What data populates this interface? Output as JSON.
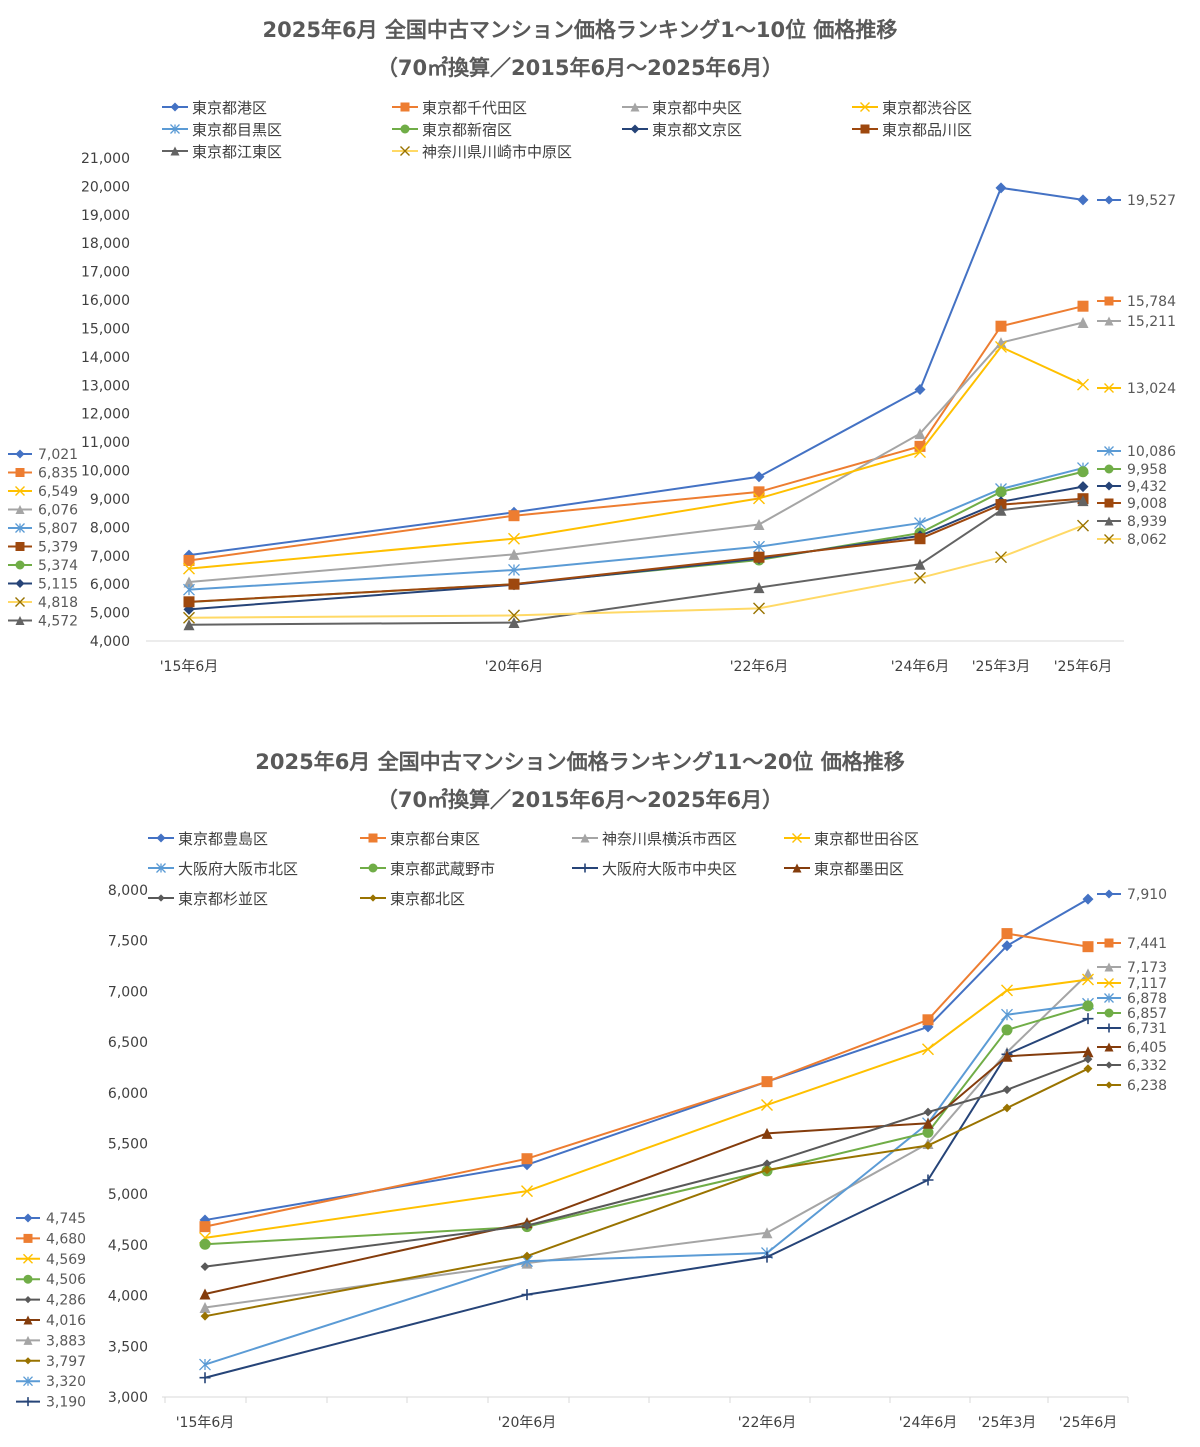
{
  "chart_data": [
    {
      "type": "line",
      "title": "2025年6月 全国中古マンション価格ランキング1～10位 価格推移",
      "subtitle": "（70㎡換算／2015年6月～2025年6月）",
      "categories": [
        "'15年6月",
        "'20年6月",
        "'22年6月",
        "'24年6月",
        "'25年3月",
        "'25年6月"
      ],
      "ylim": [
        4000,
        21000
      ],
      "ystep": 1000,
      "yticks": [
        "4,000",
        "5,000",
        "6,000",
        "7,000",
        "8,000",
        "9,000",
        "10,000",
        "11,000",
        "12,000",
        "13,000",
        "14,000",
        "15,000",
        "16,000",
        "17,000",
        "18,000",
        "19,000",
        "20,000",
        "21,000"
      ],
      "series": [
        {
          "name": "東京都港区",
          "color": "#4472C4",
          "marker": "diamond",
          "values": [
            7021,
            8530,
            9780,
            12850,
            19950,
            19527
          ],
          "start_label": "7,021",
          "end_label": "19,527"
        },
        {
          "name": "東京都千代田区",
          "color": "#ED7D31",
          "marker": "square",
          "values": [
            6835,
            8410,
            9250,
            10850,
            15080,
            15784
          ],
          "start_label": "6,835",
          "end_label": "15,784"
        },
        {
          "name": "東京都中央区",
          "color": "#A5A5A5",
          "marker": "triangle",
          "values": [
            6076,
            7050,
            8100,
            11300,
            14500,
            15211
          ],
          "start_label": "6,076",
          "end_label": "15,211"
        },
        {
          "name": "東京都渋谷区",
          "color": "#FFC000",
          "marker": "x",
          "values": [
            6549,
            7600,
            9020,
            10650,
            14350,
            13024
          ],
          "start_label": "6,549",
          "end_label": "13,024"
        },
        {
          "name": "東京都目黒区",
          "color": "#5B9BD5",
          "marker": "star",
          "values": [
            5807,
            6500,
            7320,
            8150,
            9350,
            10086
          ],
          "start_label": "5,807",
          "end_label": "10,086"
        },
        {
          "name": "東京都新宿区",
          "color": "#70AD47",
          "marker": "circle",
          "values": [
            5374,
            6000,
            6850,
            7800,
            9250,
            9958
          ],
          "start_label": "5,374",
          "end_label": "9,958"
        },
        {
          "name": "東京都文京区",
          "color": "#264478",
          "marker": "diamond",
          "values": [
            5115,
            5980,
            6900,
            7700,
            8900,
            9432
          ],
          "start_label": "5,115",
          "end_label": "9,432"
        },
        {
          "name": "東京都品川区",
          "color": "#9E480E",
          "marker": "square",
          "values": [
            5379,
            6000,
            6950,
            7600,
            8800,
            9008
          ],
          "start_label": "5,379",
          "end_label": "9,008"
        },
        {
          "name": "東京都江東区",
          "color": "#636363",
          "marker": "triangle",
          "values": [
            4572,
            4650,
            5880,
            6700,
            8600,
            8939
          ],
          "start_label": "4,572",
          "end_label": "8,939"
        },
        {
          "name": "神奈川県川崎市中原区",
          "color": "#997300",
          "marker": "x",
          "line_color": "#FFD966",
          "values": [
            4818,
            4900,
            5150,
            6220,
            6950,
            8062
          ],
          "start_label": "4,818",
          "end_label": "8,062"
        }
      ]
    },
    {
      "type": "line",
      "title": "2025年6月 全国中古マンション価格ランキング11～20位 価格推移",
      "subtitle": "（70㎡換算／2015年6月～2025年6月）",
      "categories": [
        "'15年6月",
        "'20年6月",
        "'22年6月",
        "'24年6月",
        "'25年3月",
        "'25年6月"
      ],
      "ylim": [
        3000,
        8000
      ],
      "ystep": 500,
      "yticks": [
        "3,000",
        "3,500",
        "4,000",
        "4,500",
        "5,000",
        "5,500",
        "6,000",
        "6,500",
        "7,000",
        "7,500",
        "8,000"
      ],
      "series": [
        {
          "name": "東京都豊島区",
          "color": "#4472C4",
          "marker": "diamond",
          "values": [
            4745,
            5290,
            6110,
            6650,
            7450,
            7910
          ],
          "start_label": "4,745",
          "end_label": "7,910"
        },
        {
          "name": "東京都台東区",
          "color": "#ED7D31",
          "marker": "square",
          "values": [
            4680,
            5350,
            6110,
            6720,
            7570,
            7441
          ],
          "start_label": "4,680",
          "end_label": "7,441"
        },
        {
          "name": "神奈川県横浜市西区",
          "color": "#A5A5A5",
          "marker": "triangle",
          "values": [
            3883,
            4320,
            4620,
            5500,
            6400,
            7173
          ],
          "start_label": "3,883",
          "end_label": "7,173"
        },
        {
          "name": "東京都世田谷区",
          "color": "#FFC000",
          "marker": "x",
          "values": [
            4569,
            5030,
            5880,
            6430,
            7010,
            7117
          ],
          "start_label": "4,569",
          "end_label": "7,117"
        },
        {
          "name": "大阪府大阪市北区",
          "color": "#5B9BD5",
          "marker": "star",
          "values": [
            3320,
            4340,
            4420,
            5700,
            6770,
            6878
          ],
          "start_label": "3,320",
          "end_label": "6,878"
        },
        {
          "name": "東京都武蔵野市",
          "color": "#70AD47",
          "marker": "circle",
          "values": [
            4506,
            4680,
            5230,
            5610,
            6620,
            6857
          ],
          "start_label": "4,506",
          "end_label": "6,857"
        },
        {
          "name": "大阪府大阪市中央区",
          "color": "#264478",
          "marker": "plus",
          "values": [
            3190,
            4010,
            4380,
            5140,
            6380,
            6731
          ],
          "start_label": "3,190",
          "end_label": "6,731"
        },
        {
          "name": "東京都墨田区",
          "color": "#843C0C",
          "marker": "triangle",
          "values": [
            4016,
            4720,
            5600,
            5700,
            6360,
            6405
          ],
          "start_label": "4,016",
          "end_label": "6,405"
        },
        {
          "name": "東京都杉並区",
          "color": "#595959",
          "marker": "diamond-small",
          "values": [
            4286,
            4690,
            5300,
            5810,
            6030,
            6332
          ],
          "start_label": "4,286",
          "end_label": "6,332"
        },
        {
          "name": "東京都北区",
          "color": "#997300",
          "marker": "diamond-small",
          "values": [
            3797,
            4390,
            5240,
            5480,
            5850,
            6238
          ],
          "start_label": "3,797",
          "end_label": "6,238"
        }
      ]
    }
  ]
}
